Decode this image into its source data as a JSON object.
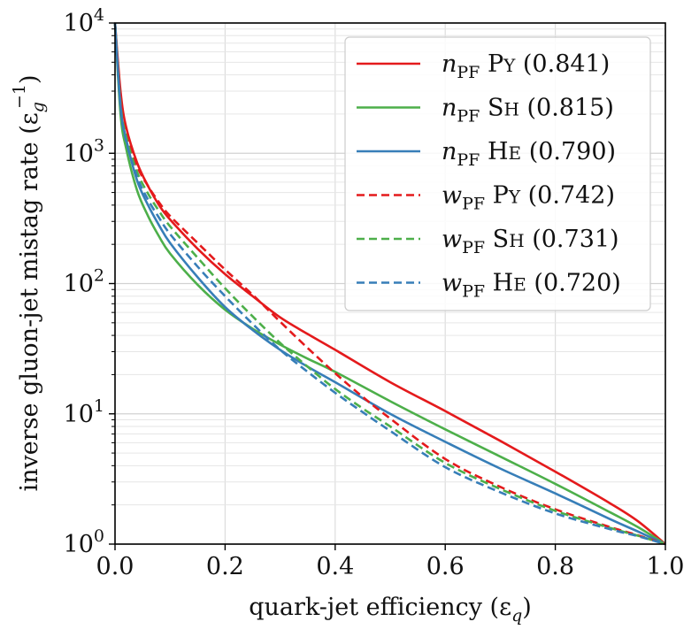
{
  "chart_data": {
    "type": "line",
    "title": "",
    "xlabel": "quark-jet efficiency (ε",
    "xlabel_sub": "q",
    "xlabel_close": ")",
    "ylabel": "inverse gluon-jet mistag rate (ε",
    "ylabel_sub": "g",
    "ylabel_sup": "−1",
    "ylabel_close": ")",
    "xlim": [
      0.0,
      1.0
    ],
    "ylim": [
      1,
      10000
    ],
    "yscale": "log",
    "grid": true,
    "legend_position": "top-right",
    "x_ticks": [
      "0.0",
      "0.2",
      "0.4",
      "0.6",
      "0.8",
      "1.0"
    ],
    "y_ticks": [
      {
        "base": "10",
        "exp": "0"
      },
      {
        "base": "10",
        "exp": "1"
      },
      {
        "base": "10",
        "exp": "2"
      },
      {
        "base": "10",
        "exp": "3"
      },
      {
        "base": "10",
        "exp": "4"
      }
    ],
    "series": [
      {
        "name": "n_PF Py (0.841)",
        "var": "n",
        "sub": "PF",
        "gen_first": "P",
        "gen_rest": "Y",
        "auc": "(0.841)",
        "color": "#e41a1c",
        "dash": "solid",
        "x": [
          0.0,
          0.01,
          0.02,
          0.04,
          0.06,
          0.08,
          0.1,
          0.15,
          0.2,
          0.25,
          0.3,
          0.35,
          0.4,
          0.5,
          0.6,
          0.7,
          0.8,
          0.9,
          0.95,
          1.0
        ],
        "y": [
          10000,
          3000,
          1600,
          850,
          560,
          400,
          310,
          185,
          118,
          80,
          55,
          41,
          31,
          17.5,
          10.5,
          6.2,
          3.6,
          2.05,
          1.5,
          1.0
        ]
      },
      {
        "name": "n_PF Sh (0.815)",
        "var": "n",
        "sub": "PF",
        "gen_first": "S",
        "gen_rest": "H",
        "auc": "(0.815)",
        "color": "#4daf4a",
        "dash": "solid",
        "x": [
          0.0,
          0.01,
          0.02,
          0.04,
          0.06,
          0.08,
          0.1,
          0.15,
          0.2,
          0.25,
          0.3,
          0.35,
          0.4,
          0.5,
          0.6,
          0.7,
          0.8,
          0.9,
          0.95,
          1.0
        ],
        "y": [
          10000,
          2000,
          1100,
          520,
          330,
          230,
          170,
          98,
          63,
          45,
          34,
          26.5,
          21,
          12.5,
          7.6,
          4.7,
          2.9,
          1.75,
          1.35,
          1.0
        ]
      },
      {
        "name": "n_PF He (0.790)",
        "var": "n",
        "sub": "PF",
        "gen_first": "H",
        "gen_rest": "E",
        "auc": "(0.790)",
        "color": "#377eb8",
        "dash": "solid",
        "x": [
          0.0,
          0.01,
          0.02,
          0.04,
          0.06,
          0.08,
          0.1,
          0.15,
          0.2,
          0.25,
          0.3,
          0.35,
          0.4,
          0.5,
          0.6,
          0.7,
          0.8,
          0.9,
          0.95,
          1.0
        ],
        "y": [
          10000,
          2300,
          1300,
          620,
          400,
          280,
          205,
          112,
          66,
          44,
          31,
          23,
          17.5,
          10,
          6.1,
          3.8,
          2.45,
          1.55,
          1.25,
          1.0
        ]
      },
      {
        "name": "w_PF Py (0.742)",
        "var": "w",
        "sub": "PF",
        "gen_first": "P",
        "gen_rest": "Y",
        "auc": "(0.742)",
        "color": "#e41a1c",
        "dash": "dashed",
        "x": [
          0.0,
          0.01,
          0.02,
          0.04,
          0.06,
          0.08,
          0.1,
          0.15,
          0.2,
          0.25,
          0.3,
          0.35,
          0.4,
          0.45,
          0.5,
          0.6,
          0.7,
          0.8,
          0.9,
          0.95,
          1.0
        ],
        "y": [
          10000,
          2600,
          1450,
          800,
          560,
          420,
          330,
          205,
          128,
          82,
          51,
          32,
          20.5,
          13.5,
          9.2,
          4.5,
          2.75,
          1.85,
          1.35,
          1.17,
          1.0
        ]
      },
      {
        "name": "w_PF Sh (0.731)",
        "var": "w",
        "sub": "PF",
        "gen_first": "S",
        "gen_rest": "H",
        "auc": "(0.731)",
        "color": "#4daf4a",
        "dash": "dashed",
        "x": [
          0.0,
          0.01,
          0.02,
          0.04,
          0.06,
          0.08,
          0.1,
          0.15,
          0.2,
          0.25,
          0.3,
          0.35,
          0.4,
          0.45,
          0.5,
          0.6,
          0.7,
          0.8,
          0.9,
          0.95,
          1.0
        ],
        "y": [
          10000,
          2400,
          1350,
          720,
          490,
          360,
          275,
          158,
          92,
          56,
          35,
          23,
          15.5,
          11,
          8,
          4.2,
          2.65,
          1.8,
          1.33,
          1.16,
          1.0
        ]
      },
      {
        "name": "w_PF He (0.720)",
        "var": "w",
        "sub": "PF",
        "gen_first": "H",
        "gen_rest": "E",
        "auc": "(0.720)",
        "color": "#377eb8",
        "dash": "dashed",
        "x": [
          0.0,
          0.01,
          0.02,
          0.04,
          0.06,
          0.08,
          0.1,
          0.15,
          0.2,
          0.25,
          0.3,
          0.35,
          0.4,
          0.45,
          0.5,
          0.6,
          0.7,
          0.8,
          0.9,
          0.95,
          1.0
        ],
        "y": [
          10000,
          2300,
          1250,
          660,
          440,
          320,
          240,
          135,
          80,
          49,
          31,
          21,
          14.5,
          10.3,
          7.4,
          3.9,
          2.5,
          1.72,
          1.3,
          1.15,
          1.0
        ]
      }
    ]
  }
}
